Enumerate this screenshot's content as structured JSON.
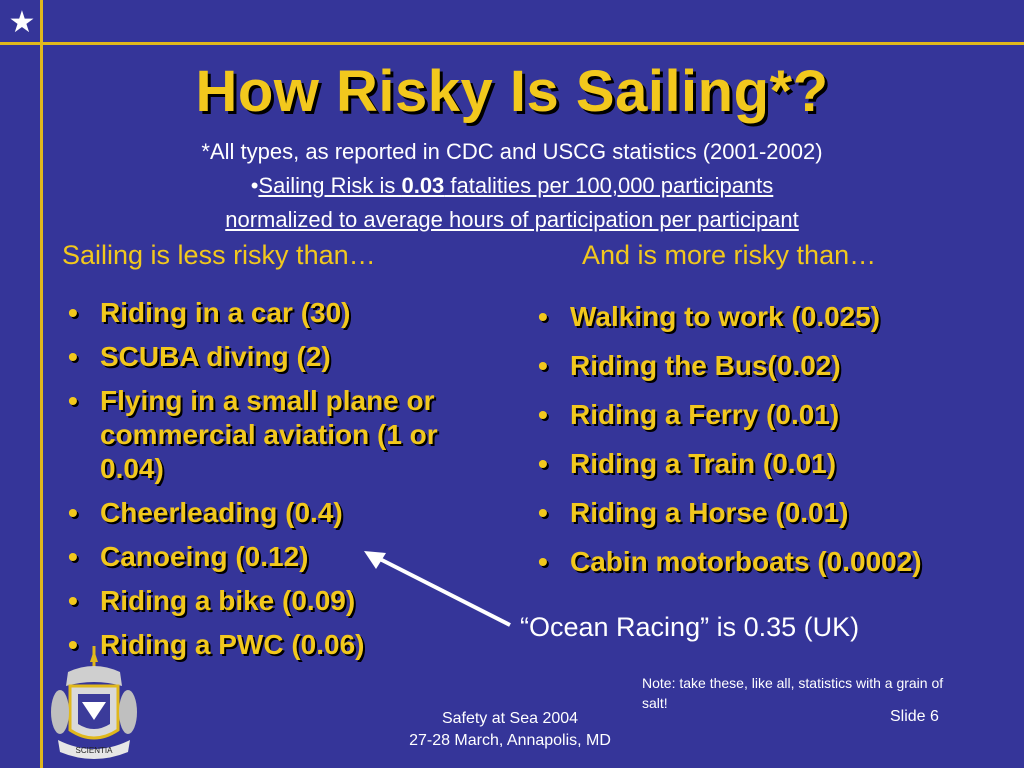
{
  "slide": {
    "title": "How Risky Is Sailing*?",
    "subtitle_note": "*All types, as reported in CDC and USCG statistics (2001-2002)",
    "risk_line": {
      "bullet": "•",
      "prefix": "Sailing Risk is ",
      "value": "0.03",
      "suffix": " fatalities per 100,000 participants"
    },
    "normalized_line": "normalized to average hours of participation per participant",
    "left_heading": "Sailing is less risky than…",
    "right_heading": "And is more risky than…",
    "bullet_char": "•",
    "left_items": [
      "Riding in a car (30)",
      "SCUBA diving (2)",
      "Flying in a small plane or commercial aviation (1 or 0.04)",
      "Cheerleading (0.4)",
      "Canoeing (0.12)",
      "Riding a bike (0.09)",
      "Riding a PWC (0.06)"
    ],
    "right_items": [
      "Walking to work (0.025)",
      "Riding the Bus(0.02)",
      "Riding a Ferry (0.01)",
      "Riding a Train (0.01)",
      "Riding a Horse (0.01)",
      "Cabin motorboats (0.0002)"
    ],
    "ocean_racing": "“Ocean Racing” is 0.35 (UK)",
    "note": "Note: take these, like all, statistics with a grain of salt!",
    "footer_line1": "Safety at Sea 2004",
    "footer_line2": "27-28 March, Annapolis, MD",
    "slide_number": "Slide 6",
    "seal_text": "SCIENTIA",
    "star_icon": "★"
  },
  "colors": {
    "background": "#353599",
    "accent_gold": "#F2C81D",
    "frame_gold": "#E0B81C",
    "text_white": "#FFFFFF"
  }
}
